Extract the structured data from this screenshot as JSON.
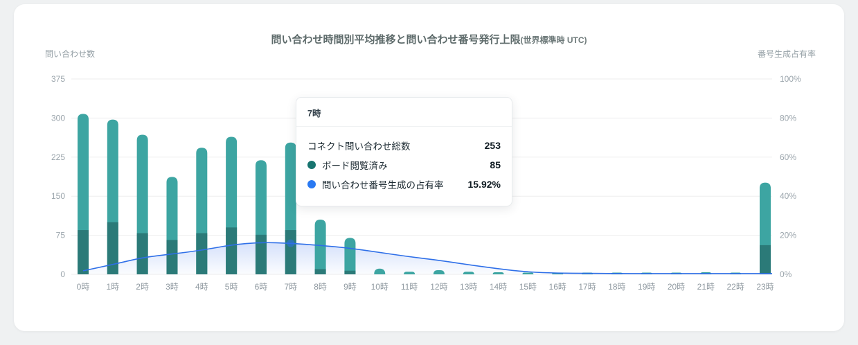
{
  "chart": {
    "title": "問い合わせ時間別平均推移と問い合わせ番号発行上限",
    "title_suffix": "(世界標準時 UTC)",
    "left_axis_title": "問い合わせ数",
    "right_axis_title": "番号生成占有率"
  },
  "tooltip": {
    "header": "7時",
    "rows": [
      {
        "label": "コネクト問い合わせ総数",
        "value": "253",
        "dot": null
      },
      {
        "label": "ボード閲覧済み",
        "value": "85",
        "dot": "#17746f"
      },
      {
        "label": "問い合わせ番号生成の占有率",
        "value": "15.92%",
        "dot": "#2979f2"
      }
    ]
  },
  "chart_data": {
    "type": "combo",
    "categories": [
      "0時",
      "1時",
      "2時",
      "3時",
      "4時",
      "5時",
      "6時",
      "7時",
      "8時",
      "9時",
      "10時",
      "11時",
      "12時",
      "13時",
      "14時",
      "15時",
      "16時",
      "17時",
      "18時",
      "19時",
      "20時",
      "21時",
      "22時",
      "23時"
    ],
    "series": [
      {
        "name": "コネクト問い合わせ総数",
        "type": "bar",
        "color": "#3da5a2",
        "values": [
          308,
          297,
          268,
          187,
          243,
          264,
          219,
          253,
          105,
          70,
          11,
          5,
          8,
          5,
          4,
          3,
          2,
          3,
          3,
          2,
          3,
          4,
          3,
          176
        ]
      },
      {
        "name": "ボード閲覧済み",
        "type": "bar-overlay",
        "color": "#2b7a78",
        "values": [
          85,
          100,
          79,
          66,
          79,
          90,
          76,
          85,
          10,
          7,
          0,
          0,
          0,
          0,
          0,
          0,
          0,
          0,
          0,
          0,
          0,
          0,
          0,
          56
        ]
      },
      {
        "name": "問い合わせ番号生成の占有率",
        "type": "line",
        "axis": "right",
        "color": "#2e6fe8",
        "area_color": "#3b71ea",
        "values_percent": [
          1.8,
          5.0,
          8.6,
          10.4,
          12.3,
          15.1,
          16.4,
          15.92,
          14.8,
          13.4,
          11.2,
          9.0,
          7.2,
          4.9,
          2.8,
          1.2,
          0.6,
          0.5,
          0.4,
          0.4,
          0.4,
          0.4,
          0.4,
          0.4
        ]
      }
    ],
    "left_axis": {
      "max": 375,
      "ticks": [
        0,
        75,
        150,
        225,
        300,
        375
      ]
    },
    "right_axis": {
      "max": 100,
      "tick_labels": [
        "0%",
        "20%",
        "40%",
        "60%",
        "80%",
        "100%"
      ]
    },
    "highlight_index": 7,
    "grid": true,
    "legend_position": "none"
  }
}
